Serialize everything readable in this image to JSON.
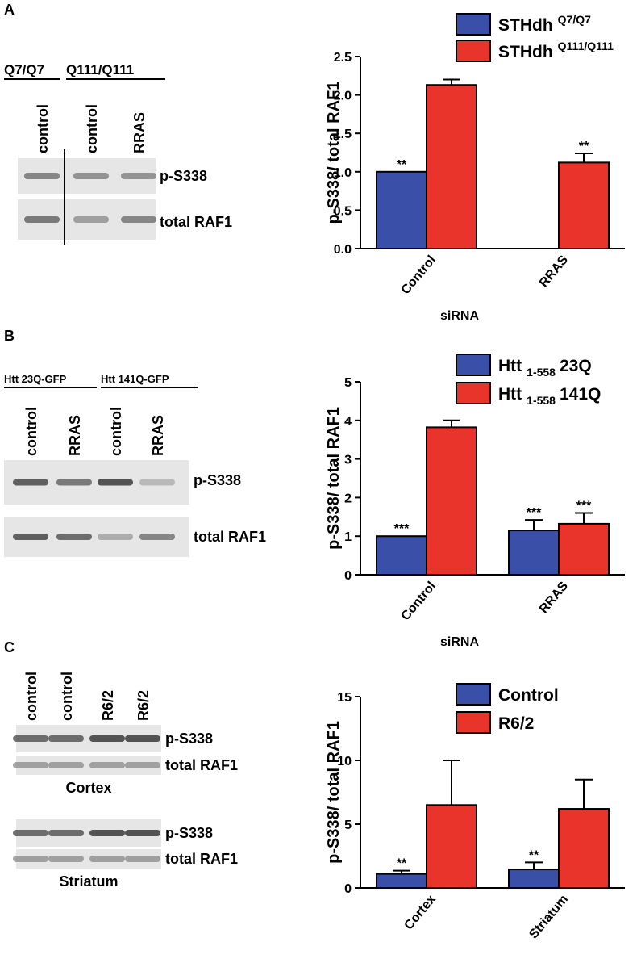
{
  "panels": [
    "A",
    "B",
    "C"
  ],
  "blots": [
    {
      "groups": [
        "Q7/Q7",
        "Q111/Q111"
      ],
      "lanes": [
        "control",
        "control",
        "RRAS"
      ],
      "bands": [
        "p-S338",
        "total RAF1"
      ]
    },
    {
      "groups": [
        "Htt 23Q-GFP",
        "Htt 141Q-GFP"
      ],
      "lanes": [
        "control",
        "RRAS",
        "control",
        "RRAS"
      ],
      "bands": [
        "p-S338",
        "total RAF1"
      ]
    },
    {
      "lanes": [
        "control",
        "control",
        "R6/2",
        "R6/2"
      ],
      "regions": [
        {
          "name": "Cortex",
          "bands": [
            "p-S338",
            "total RAF1"
          ]
        },
        {
          "name": "Striatum",
          "bands": [
            "p-S338",
            "total RAF1"
          ]
        }
      ]
    }
  ],
  "chart_data": [
    {
      "type": "bar",
      "ylabel": "p-S338/ total RAF1",
      "xlabel": "siRNA",
      "categories": [
        "Control",
        "RRAS"
      ],
      "ylim": [
        0,
        2.5
      ],
      "yticks": [
        {
          "value": 0,
          "label": "0.0"
        },
        0.5,
        {
          "value": 1,
          "label": "1.0"
        },
        1.5,
        {
          "value": 2,
          "label": "2.0"
        },
        2.5
      ],
      "series": [
        {
          "name": "STHdh",
          "name_sup": "Q7/Q7",
          "color": "#3a4fa8",
          "values": [
            1.0,
            null
          ],
          "errors": [
            0,
            null
          ],
          "stars": [
            "**",
            null
          ]
        },
        {
          "name": "STHdh",
          "name_sup": "Q111/Q111",
          "color": "#e8342a",
          "values": [
            2.13,
            1.12
          ],
          "errors": [
            0.07,
            0.12
          ],
          "stars": [
            null,
            "**"
          ]
        }
      ]
    },
    {
      "type": "bar",
      "ylabel": "p-S338/ total RAF1",
      "xlabel": "siRNA",
      "categories": [
        "Control",
        "RRAS"
      ],
      "ylim": [
        0,
        5
      ],
      "yticks": [
        0,
        1,
        2,
        3,
        4,
        5
      ],
      "series": [
        {
          "name": "Htt",
          "name_sub": "1-558",
          "name_suffix": "23Q",
          "color": "#3a4fa8",
          "values": [
            1.0,
            1.15
          ],
          "errors": [
            0,
            0.27
          ],
          "stars": [
            "***",
            "***"
          ]
        },
        {
          "name": "Htt",
          "name_sub": "1-558",
          "name_suffix": "141Q",
          "color": "#e8342a",
          "values": [
            3.82,
            1.32
          ],
          "errors": [
            0.18,
            0.28
          ],
          "stars": [
            null,
            "***"
          ]
        }
      ]
    },
    {
      "type": "bar",
      "ylabel": "p-S338/ total RAF1",
      "categories": [
        "Cortex",
        "Striatum"
      ],
      "ylim": [
        0,
        15
      ],
      "yticks": [
        0,
        5,
        10,
        15
      ],
      "series": [
        {
          "name": "Control",
          "color": "#3a4fa8",
          "values": [
            1.1,
            1.45
          ],
          "errors": [
            0.25,
            0.55
          ],
          "stars": [
            "**",
            "**"
          ]
        },
        {
          "name": "R6/2",
          "color": "#e8342a",
          "values": [
            6.5,
            6.2
          ],
          "errors": [
            3.5,
            2.3
          ],
          "stars": [
            null,
            null
          ]
        }
      ]
    }
  ]
}
